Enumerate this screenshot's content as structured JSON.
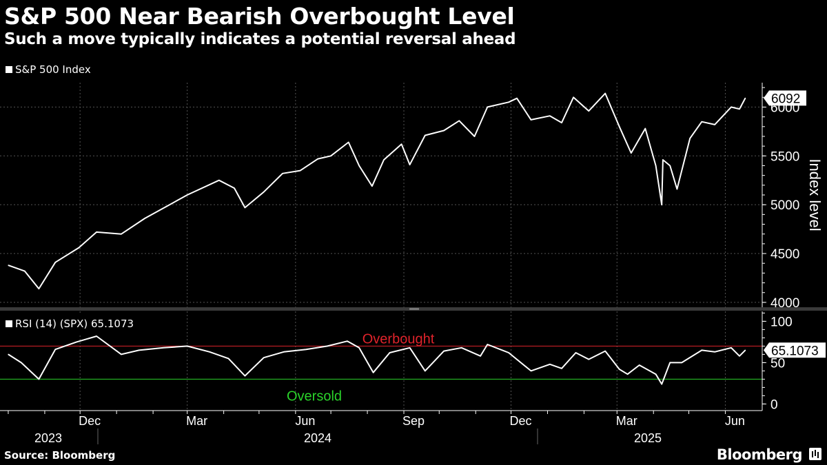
{
  "title": "S&P 500 Near Bearish Overbought Level",
  "subtitle": "Such a move typically indicates a potential reversal ahead",
  "source": "Source: Bloomberg",
  "brand": "Bloomberg",
  "colors": {
    "background": "#000000",
    "line": "#ffffff",
    "overbought": "#e0232b",
    "oversold": "#2bd42b",
    "grid": "#555555"
  },
  "chart_data": [
    {
      "type": "line",
      "title": "S&P 500 Index",
      "legend": "S&P 500 Index",
      "ylabel": "Index level",
      "ylim": [
        3950,
        6250
      ],
      "yticks": [
        4000,
        4500,
        5000,
        5500,
        6000
      ],
      "last_value_label": "6092",
      "x": [
        "2023-10-01",
        "2023-10-15",
        "2023-10-27",
        "2023-11-10",
        "2023-11-30",
        "2023-12-15",
        "2024-01-05",
        "2024-01-25",
        "2024-02-15",
        "2024-03-01",
        "2024-03-28",
        "2024-04-10",
        "2024-04-19",
        "2024-05-05",
        "2024-05-21",
        "2024-06-05",
        "2024-06-20",
        "2024-07-01",
        "2024-07-16",
        "2024-07-25",
        "2024-08-05",
        "2024-08-15",
        "2024-08-30",
        "2024-09-06",
        "2024-09-19",
        "2024-10-05",
        "2024-10-18",
        "2024-10-31",
        "2024-11-11",
        "2024-11-29",
        "2024-12-06",
        "2024-12-18",
        "2025-01-03",
        "2025-01-13",
        "2025-01-23",
        "2025-02-05",
        "2025-02-19",
        "2025-03-03",
        "2025-03-13",
        "2025-03-25",
        "2025-04-03",
        "2025-04-08",
        "2025-04-09",
        "2025-04-15",
        "2025-04-21",
        "2025-05-02",
        "2025-05-12",
        "2025-05-23",
        "2025-06-06",
        "2025-06-13",
        "2025-06-18"
      ],
      "values": [
        4380,
        4320,
        4140,
        4410,
        4560,
        4720,
        4700,
        4860,
        5000,
        5100,
        5250,
        5170,
        4970,
        5130,
        5320,
        5350,
        5470,
        5500,
        5640,
        5400,
        5190,
        5460,
        5620,
        5410,
        5710,
        5760,
        5860,
        5700,
        6000,
        6050,
        6090,
        5870,
        5910,
        5840,
        6100,
        5960,
        6140,
        5800,
        5530,
        5780,
        5400,
        5000,
        5460,
        5400,
        5160,
        5680,
        5850,
        5820,
        6000,
        5980,
        6092
      ]
    },
    {
      "type": "line",
      "title": "RSI (14) (SPX)",
      "legend": "RSI (14) (SPX) 65.1073",
      "ylim": [
        -8,
        112
      ],
      "yticks": [
        0,
        50,
        100
      ],
      "last_value_label": "65.1073",
      "overbought_level": 70,
      "oversold_level": 30,
      "overbought_label": "Overbought",
      "oversold_label": "Oversold",
      "x": [
        "2023-10-01",
        "2023-10-12",
        "2023-10-27",
        "2023-11-10",
        "2023-11-28",
        "2023-12-15",
        "2024-01-05",
        "2024-01-20",
        "2024-02-10",
        "2024-03-01",
        "2024-03-20",
        "2024-04-05",
        "2024-04-19",
        "2024-05-05",
        "2024-05-22",
        "2024-06-10",
        "2024-06-28",
        "2024-07-15",
        "2024-07-25",
        "2024-08-06",
        "2024-08-20",
        "2024-09-06",
        "2024-09-19",
        "2024-10-05",
        "2024-10-20",
        "2024-11-05",
        "2024-11-11",
        "2024-11-29",
        "2024-12-18",
        "2025-01-03",
        "2025-01-13",
        "2025-01-25",
        "2025-02-05",
        "2025-02-19",
        "2025-03-03",
        "2025-03-10",
        "2025-03-20",
        "2025-04-03",
        "2025-04-08",
        "2025-04-15",
        "2025-04-25",
        "2025-05-12",
        "2025-05-23",
        "2025-06-06",
        "2025-06-13",
        "2025-06-18"
      ],
      "values": [
        60,
        50,
        30,
        66,
        75,
        82,
        60,
        65,
        68,
        70,
        63,
        55,
        34,
        56,
        63,
        66,
        70,
        76,
        68,
        38,
        62,
        68,
        40,
        64,
        68,
        58,
        72,
        62,
        40,
        48,
        43,
        62,
        54,
        64,
        42,
        36,
        47,
        36,
        24,
        50,
        50,
        65,
        63,
        68,
        58,
        65.1073
      ]
    }
  ],
  "x_axis": {
    "month_labels": [
      "Dec",
      "Mar",
      "Jun",
      "Sep",
      "Dec",
      "Mar",
      "Jun"
    ],
    "year_labels": [
      "2023",
      "2024",
      "2025"
    ]
  }
}
